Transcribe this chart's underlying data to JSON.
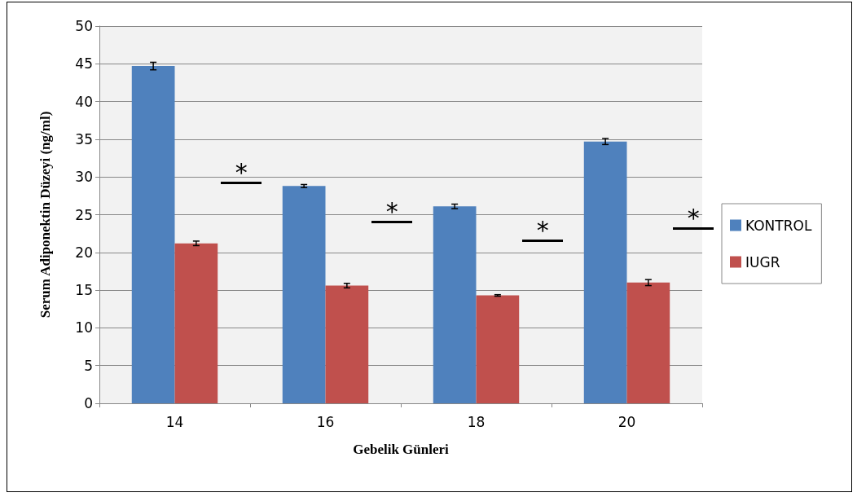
{
  "chart_data": {
    "type": "bar",
    "xlabel": "Gebelik Günleri",
    "ylabel": "Serum Adiponektin Düzeyi (ng/ml)",
    "categories": [
      "14",
      "16",
      "18",
      "20"
    ],
    "series": [
      {
        "name": "KONTROL",
        "color": "#4f81bd",
        "values": [
          44.7,
          28.8,
          26.1,
          34.7
        ],
        "errors": [
          0.5,
          0.2,
          0.3,
          0.4
        ]
      },
      {
        "name": "IUGR",
        "color": "#c0504d",
        "values": [
          21.2,
          15.6,
          14.3,
          16.0
        ],
        "errors": [
          0.3,
          0.3,
          0.1,
          0.4
        ]
      }
    ],
    "ylim": [
      0,
      50
    ],
    "yticks": [
      0,
      5,
      10,
      15,
      20,
      25,
      30,
      35,
      40,
      45,
      50
    ],
    "grid": "y",
    "legend": "right",
    "annotations": [
      {
        "text": "*",
        "x": "14",
        "y": 29.1
      },
      {
        "text": "*",
        "x": "16",
        "y": 23.9
      },
      {
        "text": "*",
        "x": "18",
        "y": 21.4
      },
      {
        "text": "*",
        "x": "20",
        "y": 23.0
      }
    ]
  }
}
